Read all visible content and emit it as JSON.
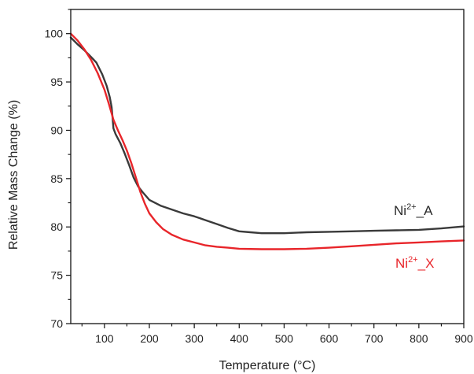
{
  "chart_data": {
    "type": "line",
    "title": "",
    "xlabel": "Temperature (°C)",
    "ylabel": "Relative Mass Change (%)",
    "xlim": [
      25,
      900
    ],
    "ylim": [
      70,
      102.5
    ],
    "x_ticks": [
      100,
      200,
      300,
      400,
      500,
      600,
      700,
      800,
      900
    ],
    "y_ticks": [
      70,
      75,
      80,
      85,
      90,
      95,
      100
    ],
    "x_minor_step": 50,
    "y_minor_step": 2.5,
    "grid": false,
    "legend": "none",
    "series": [
      {
        "name": "Ni2+_A",
        "label_base": "Ni",
        "label_sup": "2+",
        "label_suffix": "_A",
        "color": "#3a3a3a",
        "points": [
          [
            25,
            99.6
          ],
          [
            40,
            98.9
          ],
          [
            55,
            98.3
          ],
          [
            70,
            97.6
          ],
          [
            82,
            97.0
          ],
          [
            95,
            95.8
          ],
          [
            105,
            94.6
          ],
          [
            112,
            93.4
          ],
          [
            116,
            92.4
          ],
          [
            118,
            91.4
          ],
          [
            120,
            90.2
          ],
          [
            125,
            89.6
          ],
          [
            135,
            88.7
          ],
          [
            145,
            87.6
          ],
          [
            155,
            86.4
          ],
          [
            165,
            85.1
          ],
          [
            175,
            84.2
          ],
          [
            185,
            83.6
          ],
          [
            200,
            82.8
          ],
          [
            225,
            82.2
          ],
          [
            250,
            81.8
          ],
          [
            275,
            81.4
          ],
          [
            300,
            81.1
          ],
          [
            325,
            80.7
          ],
          [
            350,
            80.3
          ],
          [
            375,
            79.9
          ],
          [
            400,
            79.55
          ],
          [
            425,
            79.45
          ],
          [
            450,
            79.35
          ],
          [
            500,
            79.35
          ],
          [
            550,
            79.45
          ],
          [
            600,
            79.5
          ],
          [
            650,
            79.55
          ],
          [
            700,
            79.6
          ],
          [
            750,
            79.65
          ],
          [
            800,
            79.7
          ],
          [
            850,
            79.85
          ],
          [
            900,
            80.05
          ]
        ]
      },
      {
        "name": "Ni2+_X",
        "label_base": "Ni",
        "label_sup": "2+",
        "label_suffix": "_X",
        "color": "#e8252a",
        "points": [
          [
            25,
            100.0
          ],
          [
            40,
            99.3
          ],
          [
            55,
            98.4
          ],
          [
            70,
            97.3
          ],
          [
            85,
            95.9
          ],
          [
            100,
            94.2
          ],
          [
            110,
            92.7
          ],
          [
            120,
            91.1
          ],
          [
            130,
            90.0
          ],
          [
            140,
            89.0
          ],
          [
            150,
            87.9
          ],
          [
            160,
            86.6
          ],
          [
            170,
            85.1
          ],
          [
            180,
            83.6
          ],
          [
            190,
            82.4
          ],
          [
            200,
            81.4
          ],
          [
            215,
            80.5
          ],
          [
            230,
            79.8
          ],
          [
            250,
            79.2
          ],
          [
            275,
            78.7
          ],
          [
            300,
            78.4
          ],
          [
            325,
            78.1
          ],
          [
            350,
            77.95
          ],
          [
            375,
            77.85
          ],
          [
            400,
            77.75
          ],
          [
            450,
            77.7
          ],
          [
            500,
            77.7
          ],
          [
            550,
            77.75
          ],
          [
            600,
            77.85
          ],
          [
            650,
            78.0
          ],
          [
            700,
            78.15
          ],
          [
            750,
            78.3
          ],
          [
            800,
            78.4
          ],
          [
            850,
            78.5
          ],
          [
            900,
            78.6
          ]
        ]
      }
    ]
  }
}
